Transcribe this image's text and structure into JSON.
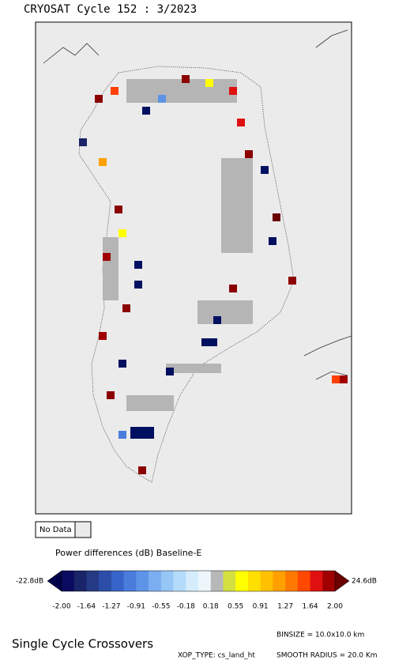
{
  "header": {
    "title": "CRYOSAT Cycle 152 : 3/2023"
  },
  "legend": {
    "no_data": "No Data"
  },
  "colorbar": {
    "title": "Power differences (dB) Baseline-E",
    "min_label": "-22.8dB",
    "max_label": "24.6dB",
    "tick_labels": [
      "-2.00",
      "-1.64",
      "-1.27",
      "-0.91",
      "-0.55",
      "-0.18",
      "0.18",
      "0.55",
      "0.91",
      "1.27",
      "1.64",
      "2.00"
    ],
    "low_color": "#00004a",
    "high_color": "#6a0000",
    "colors": [
      "#0a0a60",
      "#1a2468",
      "#243a84",
      "#2c4ea8",
      "#3664c8",
      "#4a7cdc",
      "#5e94e8",
      "#7aaef0",
      "#96c6f6",
      "#b4dcfa",
      "#d4ecfc",
      "#eef6fc",
      "#b8b8b8",
      "#d4e040",
      "#ffff00",
      "#ffe000",
      "#ffc000",
      "#ffa000",
      "#ff7800",
      "#ff4800",
      "#e01010",
      "#a00000"
    ]
  },
  "footer": {
    "name": "Single Cycle Crossovers",
    "binsize": "BINSIZE = 10.0x10.0 km",
    "xop_type": "XOP_TYPE: cs_land_ht",
    "smooth_radius": "SMOOTH RADIUS =  20.0 Km"
  }
}
